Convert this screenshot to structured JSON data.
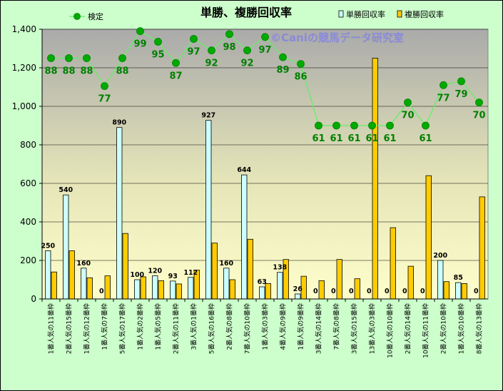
{
  "chart_data": {
    "type": "bar",
    "title": "単勝、複勝回収率",
    "watermark": "©Caniの競馬データ研究室",
    "ylim": [
      0,
      1400
    ],
    "yticks": [
      "0",
      "200",
      "400",
      "600",
      "800",
      "1,000",
      "1,200",
      "1,400"
    ],
    "grid": true,
    "legend_position": "top",
    "categories": [
      "1番人気の11番枠",
      "2番人気の15番枠",
      "1番人気の12番枠",
      "1番人気の7番枠",
      "5番人気の17番枠",
      "1番人気の2番枠",
      "1番人気の5番枠",
      "2番人気の11番枠",
      "3番人気の1番枠",
      "5番人気の16番枠",
      "2番人気の8番枠",
      "7番人気の10番枠",
      "1番人気の3番枠",
      "4番人気の9番枠",
      "1番人気の9番枠",
      "3番人気の14番枠",
      "7番人気の8番枠",
      "3番人気の15番枠",
      "13番人気の3番枠",
      "10番人気の10番枠",
      "2番人気の14番枠",
      "10番人気の11番枠",
      "2番人気の10番枠",
      "1番人気の10番枠",
      "8番人気の13番枠"
    ],
    "series": [
      {
        "name": "単勝回収率",
        "color": "#ccffff",
        "values": [
          250,
          540,
          160,
          0,
          890,
          100,
          120,
          93,
          112,
          927,
          160,
          644,
          63,
          138,
          26,
          0,
          0,
          0,
          0,
          0,
          0,
          0,
          200,
          85,
          0
        ],
        "labels": [
          "250",
          "540",
          "160",
          "0",
          "890",
          "100",
          "120",
          "93",
          "112",
          "927",
          "160",
          "644",
          "63",
          "138",
          "26",
          "0",
          "0",
          "0",
          "0",
          "0",
          "0",
          "0",
          "200",
          "85",
          "0"
        ]
      },
      {
        "name": "複勝回収率",
        "color": "#ffcc00",
        "values": [
          140,
          250,
          110,
          120,
          340,
          115,
          95,
          78,
          150,
          290,
          100,
          310,
          80,
          205,
          118,
          95,
          205,
          105,
          1250,
          370,
          170,
          640,
          90,
          80,
          530
        ]
      },
      {
        "name": "検定",
        "color": "#00aa00",
        "values": [
          1250,
          1250,
          1250,
          1105,
          1250,
          1390,
          1335,
          1225,
          1350,
          1290,
          1375,
          1290,
          1360,
          1255,
          1220,
          900,
          900,
          900,
          900,
          900,
          1020,
          900,
          1110,
          1130,
          1020
        ],
        "labels": [
          "88",
          "88",
          "88",
          "77",
          "88",
          "99",
          "95",
          "87",
          "97",
          "92",
          "98",
          "92",
          "97",
          "89",
          "86",
          "61",
          "61",
          "61",
          "61",
          "61",
          "70",
          "61",
          "77",
          "79",
          "70"
        ]
      }
    ]
  }
}
